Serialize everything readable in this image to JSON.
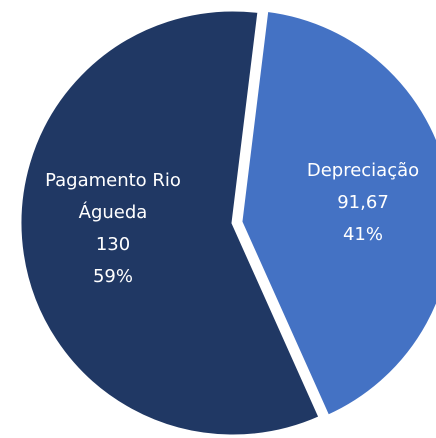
{
  "chart_data": {
    "type": "pie",
    "categories": [
      "Pagamento Rio Águeda",
      "Depreciação"
    ],
    "values": [
      130,
      91.67
    ],
    "value_labels": [
      "130",
      "91,67"
    ],
    "percentages": [
      59,
      41
    ],
    "percentage_labels": [
      "59%",
      "41%"
    ],
    "colors": [
      "#203864",
      "#4472c4"
    ]
  }
}
